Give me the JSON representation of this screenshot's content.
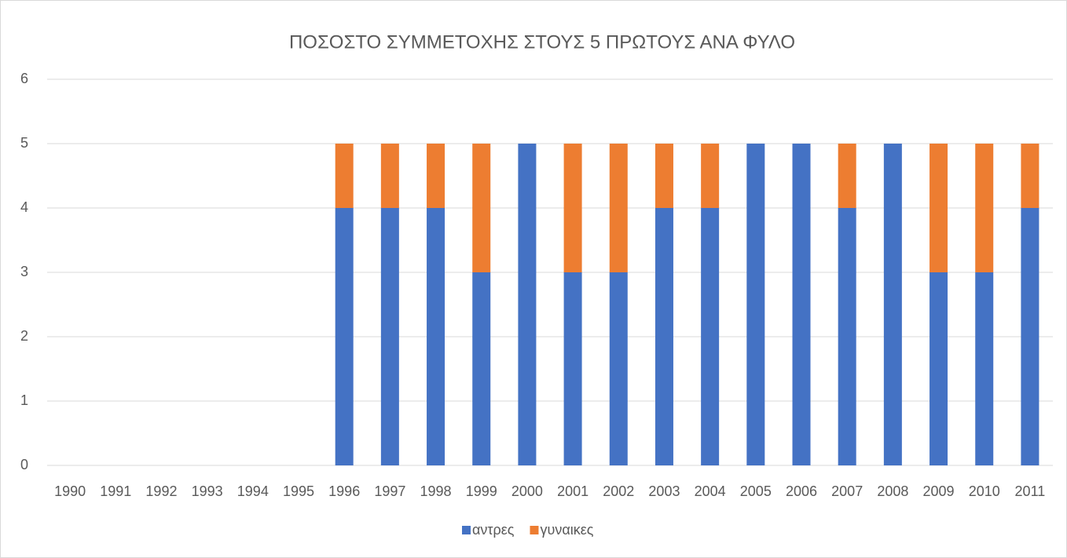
{
  "chart_data": {
    "type": "stacked_bar",
    "title": "ΠΟΣΟΣΤΟ ΣΥΜΜΕΤΟΧΗΣ ΣΤΟΥΣ 5 ΠΡΩΤΟΥΣ ΑΝΑ  ΦΥΛΟ",
    "categories": [
      "1990",
      "1991",
      "1992",
      "1993",
      "1994",
      "1995",
      "1996",
      "1997",
      "1998",
      "1999",
      "2000",
      "2001",
      "2002",
      "2003",
      "2004",
      "2005",
      "2006",
      "2007",
      "2008",
      "2009",
      "2010",
      "2011"
    ],
    "series": [
      {
        "name": "αντρες",
        "color": "#4472c4",
        "values": [
          null,
          null,
          null,
          null,
          null,
          null,
          4,
          4,
          4,
          3,
          5,
          3,
          3,
          4,
          4,
          5,
          5,
          4,
          5,
          3,
          3,
          4
        ]
      },
      {
        "name": "γυναικες",
        "color": "#ed7d31",
        "values": [
          null,
          null,
          null,
          null,
          null,
          null,
          1,
          1,
          1,
          2,
          0,
          2,
          2,
          1,
          1,
          0,
          0,
          1,
          0,
          2,
          2,
          1
        ]
      }
    ],
    "ylim": [
      0,
      6
    ],
    "yticks": [
      0,
      1,
      2,
      3,
      4,
      5,
      6
    ],
    "grid": true,
    "legend": "bottom"
  }
}
